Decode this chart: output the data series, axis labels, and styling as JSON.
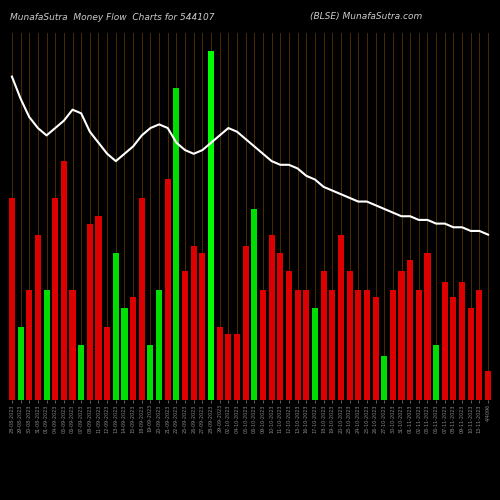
{
  "title_left": "MunafaSutra  Money Flow  Charts for 544107",
  "title_right": "(BLSE) MunafaSutra.com",
  "background_color": "#000000",
  "bar_color_pos": "#00dd00",
  "bar_color_neg": "#dd0000",
  "line_color": "#ffffff",
  "title_color": "#cccccc",
  "tick_color": "#888888",
  "grid_color": "#5c3000",
  "categories": [
    "28-08-2023",
    "29-08-2023",
    "30-08-2023",
    "31-08-2023",
    "01-09-2023",
    "04-09-2023",
    "05-09-2023",
    "06-09-2023",
    "07-09-2023",
    "08-09-2023",
    "11-09-2023",
    "12-09-2023",
    "13-09-2023",
    "14-09-2023",
    "15-09-2023",
    "18-09-2023",
    "19-09-2023",
    "20-09-2023",
    "21-09-2023",
    "22-09-2023",
    "25-09-2023",
    "26-09-2023",
    "27-09-2023",
    "28-09-2023",
    "29-09-2023",
    "02-10-2023",
    "04-10-2023",
    "05-10-2023",
    "06-10-2023",
    "09-10-2023",
    "10-10-2023",
    "11-10-2023",
    "12-10-2023",
    "13-10-2023",
    "16-10-2023",
    "17-10-2023",
    "18-10-2023",
    "19-10-2023",
    "20-10-2023",
    "23-10-2023",
    "24-10-2023",
    "25-10-2023",
    "26-10-2023",
    "27-10-2023",
    "30-10-2023",
    "31-10-2023",
    "01-11-2023",
    "02-11-2023",
    "03-11-2023",
    "06-11-2023",
    "07-11-2023",
    "08-11-2023",
    "09-11-2023",
    "10-11-2023",
    "13-11-2023",
    "4/4096"
  ],
  "bar_heights": [
    55,
    20,
    30,
    45,
    30,
    55,
    65,
    30,
    15,
    48,
    50,
    20,
    40,
    25,
    28,
    55,
    15,
    30,
    60,
    85,
    35,
    42,
    40,
    95,
    20,
    18,
    18,
    42,
    52,
    30,
    45,
    40,
    35,
    30,
    30,
    25,
    35,
    30,
    45,
    35,
    30,
    30,
    28,
    12,
    30,
    35,
    38,
    30,
    40,
    15,
    32,
    28,
    32,
    25,
    30,
    8
  ],
  "bar_colors": [
    "R",
    "G",
    "R",
    "R",
    "G",
    "R",
    "R",
    "R",
    "G",
    "R",
    "R",
    "R",
    "G",
    "G",
    "R",
    "R",
    "G",
    "G",
    "R",
    "G",
    "R",
    "R",
    "R",
    "G",
    "R",
    "R",
    "R",
    "R",
    "G",
    "R",
    "R",
    "R",
    "R",
    "R",
    "R",
    "G",
    "R",
    "R",
    "R",
    "R",
    "R",
    "R",
    "R",
    "G",
    "R",
    "R",
    "R",
    "R",
    "R",
    "G",
    "R",
    "R",
    "R",
    "R",
    "R",
    "R"
  ],
  "special_bar_index": 23,
  "special_bar_color": "#00ff00",
  "line_values": [
    88,
    82,
    77,
    74,
    72,
    74,
    76,
    79,
    78,
    73,
    70,
    67,
    65,
    67,
    69,
    72,
    74,
    75,
    74,
    70,
    68,
    67,
    68,
    70,
    72,
    74,
    73,
    71,
    69,
    67,
    65,
    64,
    64,
    63,
    61,
    60,
    58,
    57,
    56,
    55,
    54,
    54,
    53,
    52,
    51,
    50,
    50,
    49,
    49,
    48,
    48,
    47,
    47,
    46,
    46,
    45
  ],
  "figsize": [
    5.0,
    5.0
  ],
  "dpi": 100
}
